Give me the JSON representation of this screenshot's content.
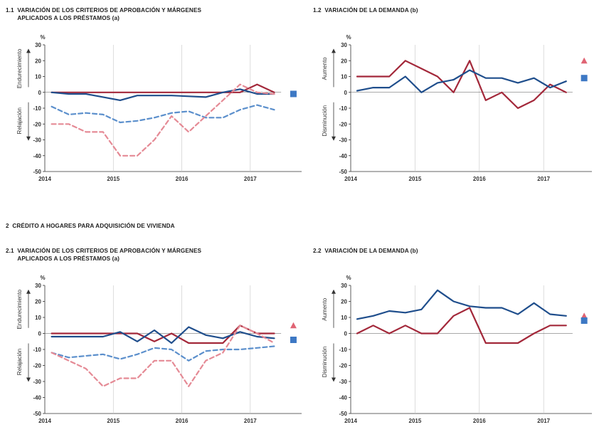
{
  "section2_title": "2  CRÉDITO A HOGARES PARA ADQUISICIÓN DE VIVIENDA",
  "colors": {
    "navy": "#1f4e8c",
    "crimson": "#a3283a",
    "light_blue_dash": "#5b8fcc",
    "pink_dash": "#e58a95",
    "triangle": "#e06474",
    "square": "#3d78c4",
    "axis": "#333333"
  },
  "chart_data": [
    {
      "id": "c11",
      "type": "line",
      "title_line1": "1.1  VARIACIÓN DE LOS CRITERIOS DE APROBACIÓN Y MÁRGENES",
      "title_line2": "       APLICADOS A LOS PRÉSTAMOS (a)",
      "unit": "%",
      "ylim": [
        -50,
        30
      ],
      "yticks": [
        30,
        20,
        10,
        0,
        -10,
        -20,
        -30,
        -40,
        -50
      ],
      "xlim": [
        2014.0,
        2017.75
      ],
      "xticks": [
        "2014",
        "2015",
        "2016",
        "2017"
      ],
      "upper_label": "Endurecimiento",
      "lower_label": "Relajación",
      "series": [
        {
          "name": "solid-crimson",
          "style": "solid",
          "color": "crimson",
          "x": [
            2014.1,
            2014.35,
            2014.6,
            2014.85,
            2015.1,
            2015.35,
            2015.6,
            2015.85,
            2016.1,
            2016.35,
            2016.6,
            2016.85,
            2017.1,
            2017.35
          ],
          "y": [
            0,
            0,
            0,
            0,
            0,
            0,
            0,
            0,
            0,
            0,
            0,
            0,
            5,
            0
          ]
        },
        {
          "name": "solid-navy",
          "style": "solid",
          "color": "navy",
          "x": [
            2014.1,
            2014.35,
            2014.6,
            2014.85,
            2015.1,
            2015.35,
            2015.6,
            2015.85,
            2016.1,
            2016.35,
            2016.6,
            2016.85,
            2017.1,
            2017.35
          ],
          "y": [
            0,
            -1,
            -1,
            -3,
            -5,
            -2,
            -2,
            -2,
            -2.5,
            -3,
            0,
            2,
            -1,
            -1
          ]
        },
        {
          "name": "dashed-lightblue",
          "style": "dashed",
          "color": "light_blue_dash",
          "x": [
            2014.1,
            2014.35,
            2014.6,
            2014.85,
            2015.1,
            2015.35,
            2015.6,
            2015.85,
            2016.1,
            2016.35,
            2016.6,
            2016.85,
            2017.1,
            2017.35
          ],
          "y": [
            -9,
            -14,
            -13,
            -14,
            -19,
            -18,
            -16,
            -13,
            -12,
            -16,
            -16,
            -11,
            -8,
            -11
          ]
        },
        {
          "name": "dashed-pink",
          "style": "dashed",
          "color": "pink_dash",
          "x": [
            2014.1,
            2014.35,
            2014.6,
            2014.85,
            2015.1,
            2015.35,
            2015.6,
            2015.85,
            2016.1,
            2016.35,
            2016.6,
            2016.85,
            2017.1,
            2017.35
          ],
          "y": [
            -20,
            -20,
            -25,
            -25,
            -40,
            -40,
            -30,
            -15,
            -25,
            -15,
            -5,
            5,
            0,
            -1
          ]
        }
      ],
      "markers": [
        {
          "shape": "square",
          "color": "square",
          "x": 2017.63,
          "y": -1
        }
      ]
    },
    {
      "id": "c12",
      "type": "line",
      "title_line1": "1.2  VARIACIÓN DE LA DEMANDA (b)",
      "title_line2": "",
      "unit": "%",
      "ylim": [
        -50,
        30
      ],
      "yticks": [
        30,
        20,
        10,
        0,
        -10,
        -20,
        -30,
        -40,
        -50
      ],
      "xlim": [
        2014.0,
        2017.75
      ],
      "xticks": [
        "2014",
        "2015",
        "2016",
        "2017"
      ],
      "upper_label": "Aumento",
      "lower_label": "Disminución",
      "series": [
        {
          "name": "solid-crimson",
          "style": "solid",
          "color": "crimson",
          "x": [
            2014.1,
            2014.35,
            2014.6,
            2014.85,
            2015.1,
            2015.35,
            2015.6,
            2015.85,
            2016.1,
            2016.35,
            2016.6,
            2016.85,
            2017.1,
            2017.35
          ],
          "y": [
            10,
            10,
            10,
            20,
            15,
            10,
            0,
            20,
            -5,
            0,
            -10,
            -5,
            5,
            0
          ]
        },
        {
          "name": "solid-navy",
          "style": "solid",
          "color": "navy",
          "x": [
            2014.1,
            2014.35,
            2014.6,
            2014.85,
            2015.1,
            2015.35,
            2015.6,
            2015.85,
            2016.1,
            2016.35,
            2016.6,
            2016.85,
            2017.1,
            2017.35
          ],
          "y": [
            1,
            3,
            3,
            10,
            0,
            6,
            8,
            14,
            9,
            9,
            6,
            9,
            3,
            7
          ]
        }
      ],
      "markers": [
        {
          "shape": "triangle",
          "color": "triangle",
          "x": 2017.63,
          "y": 20
        },
        {
          "shape": "square",
          "color": "square",
          "x": 2017.63,
          "y": 9
        }
      ]
    },
    {
      "id": "c21",
      "type": "line",
      "title_line1": "2.1  VARIACIÓN DE LOS CRITERIOS DE APROBACIÓN Y MÁRGENES",
      "title_line2": "       APLICADOS A LOS PRÉSTAMOS (a)",
      "unit": "%",
      "ylim": [
        -50,
        30
      ],
      "yticks": [
        30,
        20,
        10,
        0,
        -10,
        -20,
        -30,
        -40,
        -50
      ],
      "xlim": [
        2014.0,
        2017.75
      ],
      "xticks": [
        "2014",
        "2015",
        "2016",
        "2017"
      ],
      "upper_label": "Endurecimiento",
      "lower_label": "Relajación",
      "series": [
        {
          "name": "solid-crimson",
          "style": "solid",
          "color": "crimson",
          "x": [
            2014.1,
            2014.35,
            2014.6,
            2014.85,
            2015.1,
            2015.35,
            2015.6,
            2015.85,
            2016.1,
            2016.35,
            2016.6,
            2016.85,
            2017.1,
            2017.35
          ],
          "y": [
            0,
            0,
            0,
            0,
            0,
            0,
            -5,
            0,
            -6,
            -6,
            -6,
            5,
            0,
            0
          ]
        },
        {
          "name": "solid-navy",
          "style": "solid",
          "color": "navy",
          "x": [
            2014.1,
            2014.35,
            2014.6,
            2014.85,
            2015.1,
            2015.35,
            2015.6,
            2015.85,
            2016.1,
            2016.35,
            2016.6,
            2016.85,
            2017.1,
            2017.35
          ],
          "y": [
            -2,
            -2,
            -2,
            -2,
            1,
            -5,
            2,
            -6,
            4,
            -1,
            -3,
            1,
            -2,
            -3
          ]
        },
        {
          "name": "dashed-lightblue",
          "style": "dashed",
          "color": "light_blue_dash",
          "x": [
            2014.1,
            2014.35,
            2014.6,
            2014.85,
            2015.1,
            2015.35,
            2015.6,
            2015.85,
            2016.1,
            2016.35,
            2016.6,
            2016.85,
            2017.1,
            2017.35
          ],
          "y": [
            -12,
            -15,
            -14,
            -13,
            -16,
            -13,
            -9,
            -10,
            -17,
            -11,
            -10,
            -10,
            -9,
            -8
          ]
        },
        {
          "name": "dashed-pink",
          "style": "dashed",
          "color": "pink_dash",
          "x": [
            2014.1,
            2014.35,
            2014.6,
            2014.85,
            2015.1,
            2015.35,
            2015.6,
            2015.85,
            2016.1,
            2016.35,
            2016.6,
            2016.85,
            2017.1,
            2017.35
          ],
          "y": [
            -12,
            -17,
            -22,
            -33,
            -28,
            -28,
            -17,
            -17,
            -33,
            -17,
            -12,
            5,
            0,
            -6
          ]
        }
      ],
      "markers": [
        {
          "shape": "triangle",
          "color": "triangle",
          "x": 2017.63,
          "y": 5
        },
        {
          "shape": "square",
          "color": "square",
          "x": 2017.63,
          "y": -4
        }
      ]
    },
    {
      "id": "c22",
      "type": "line",
      "title_line1": "2.2  VARIACIÓN DE LA DEMANDA (b)",
      "title_line2": "",
      "unit": "%",
      "ylim": [
        -50,
        30
      ],
      "yticks": [
        30,
        20,
        10,
        0,
        -10,
        -20,
        -30,
        -40,
        -50
      ],
      "xlim": [
        2014.0,
        2017.75
      ],
      "xticks": [
        "2014",
        "2015",
        "2016",
        "2017"
      ],
      "upper_label": "Aumento",
      "lower_label": "Disminución",
      "series": [
        {
          "name": "solid-crimson",
          "style": "solid",
          "color": "crimson",
          "x": [
            2014.1,
            2014.35,
            2014.6,
            2014.85,
            2015.1,
            2015.35,
            2015.6,
            2015.85,
            2016.1,
            2016.35,
            2016.6,
            2016.85,
            2017.1,
            2017.35
          ],
          "y": [
            0,
            5,
            0,
            5,
            0,
            0,
            11,
            16,
            -6,
            -6,
            -6,
            0,
            5,
            5
          ]
        },
        {
          "name": "solid-navy",
          "style": "solid",
          "color": "navy",
          "x": [
            2014.1,
            2014.35,
            2014.6,
            2014.85,
            2015.1,
            2015.35,
            2015.6,
            2015.85,
            2016.1,
            2016.35,
            2016.6,
            2016.85,
            2017.1,
            2017.35
          ],
          "y": [
            9,
            11,
            14,
            13,
            15,
            27,
            20,
            17,
            16,
            16,
            12,
            19,
            12,
            11
          ]
        }
      ],
      "markers": [
        {
          "shape": "triangle",
          "color": "triangle",
          "x": 2017.63,
          "y": 11
        },
        {
          "shape": "square",
          "color": "square",
          "x": 2017.63,
          "y": 8
        }
      ]
    }
  ]
}
